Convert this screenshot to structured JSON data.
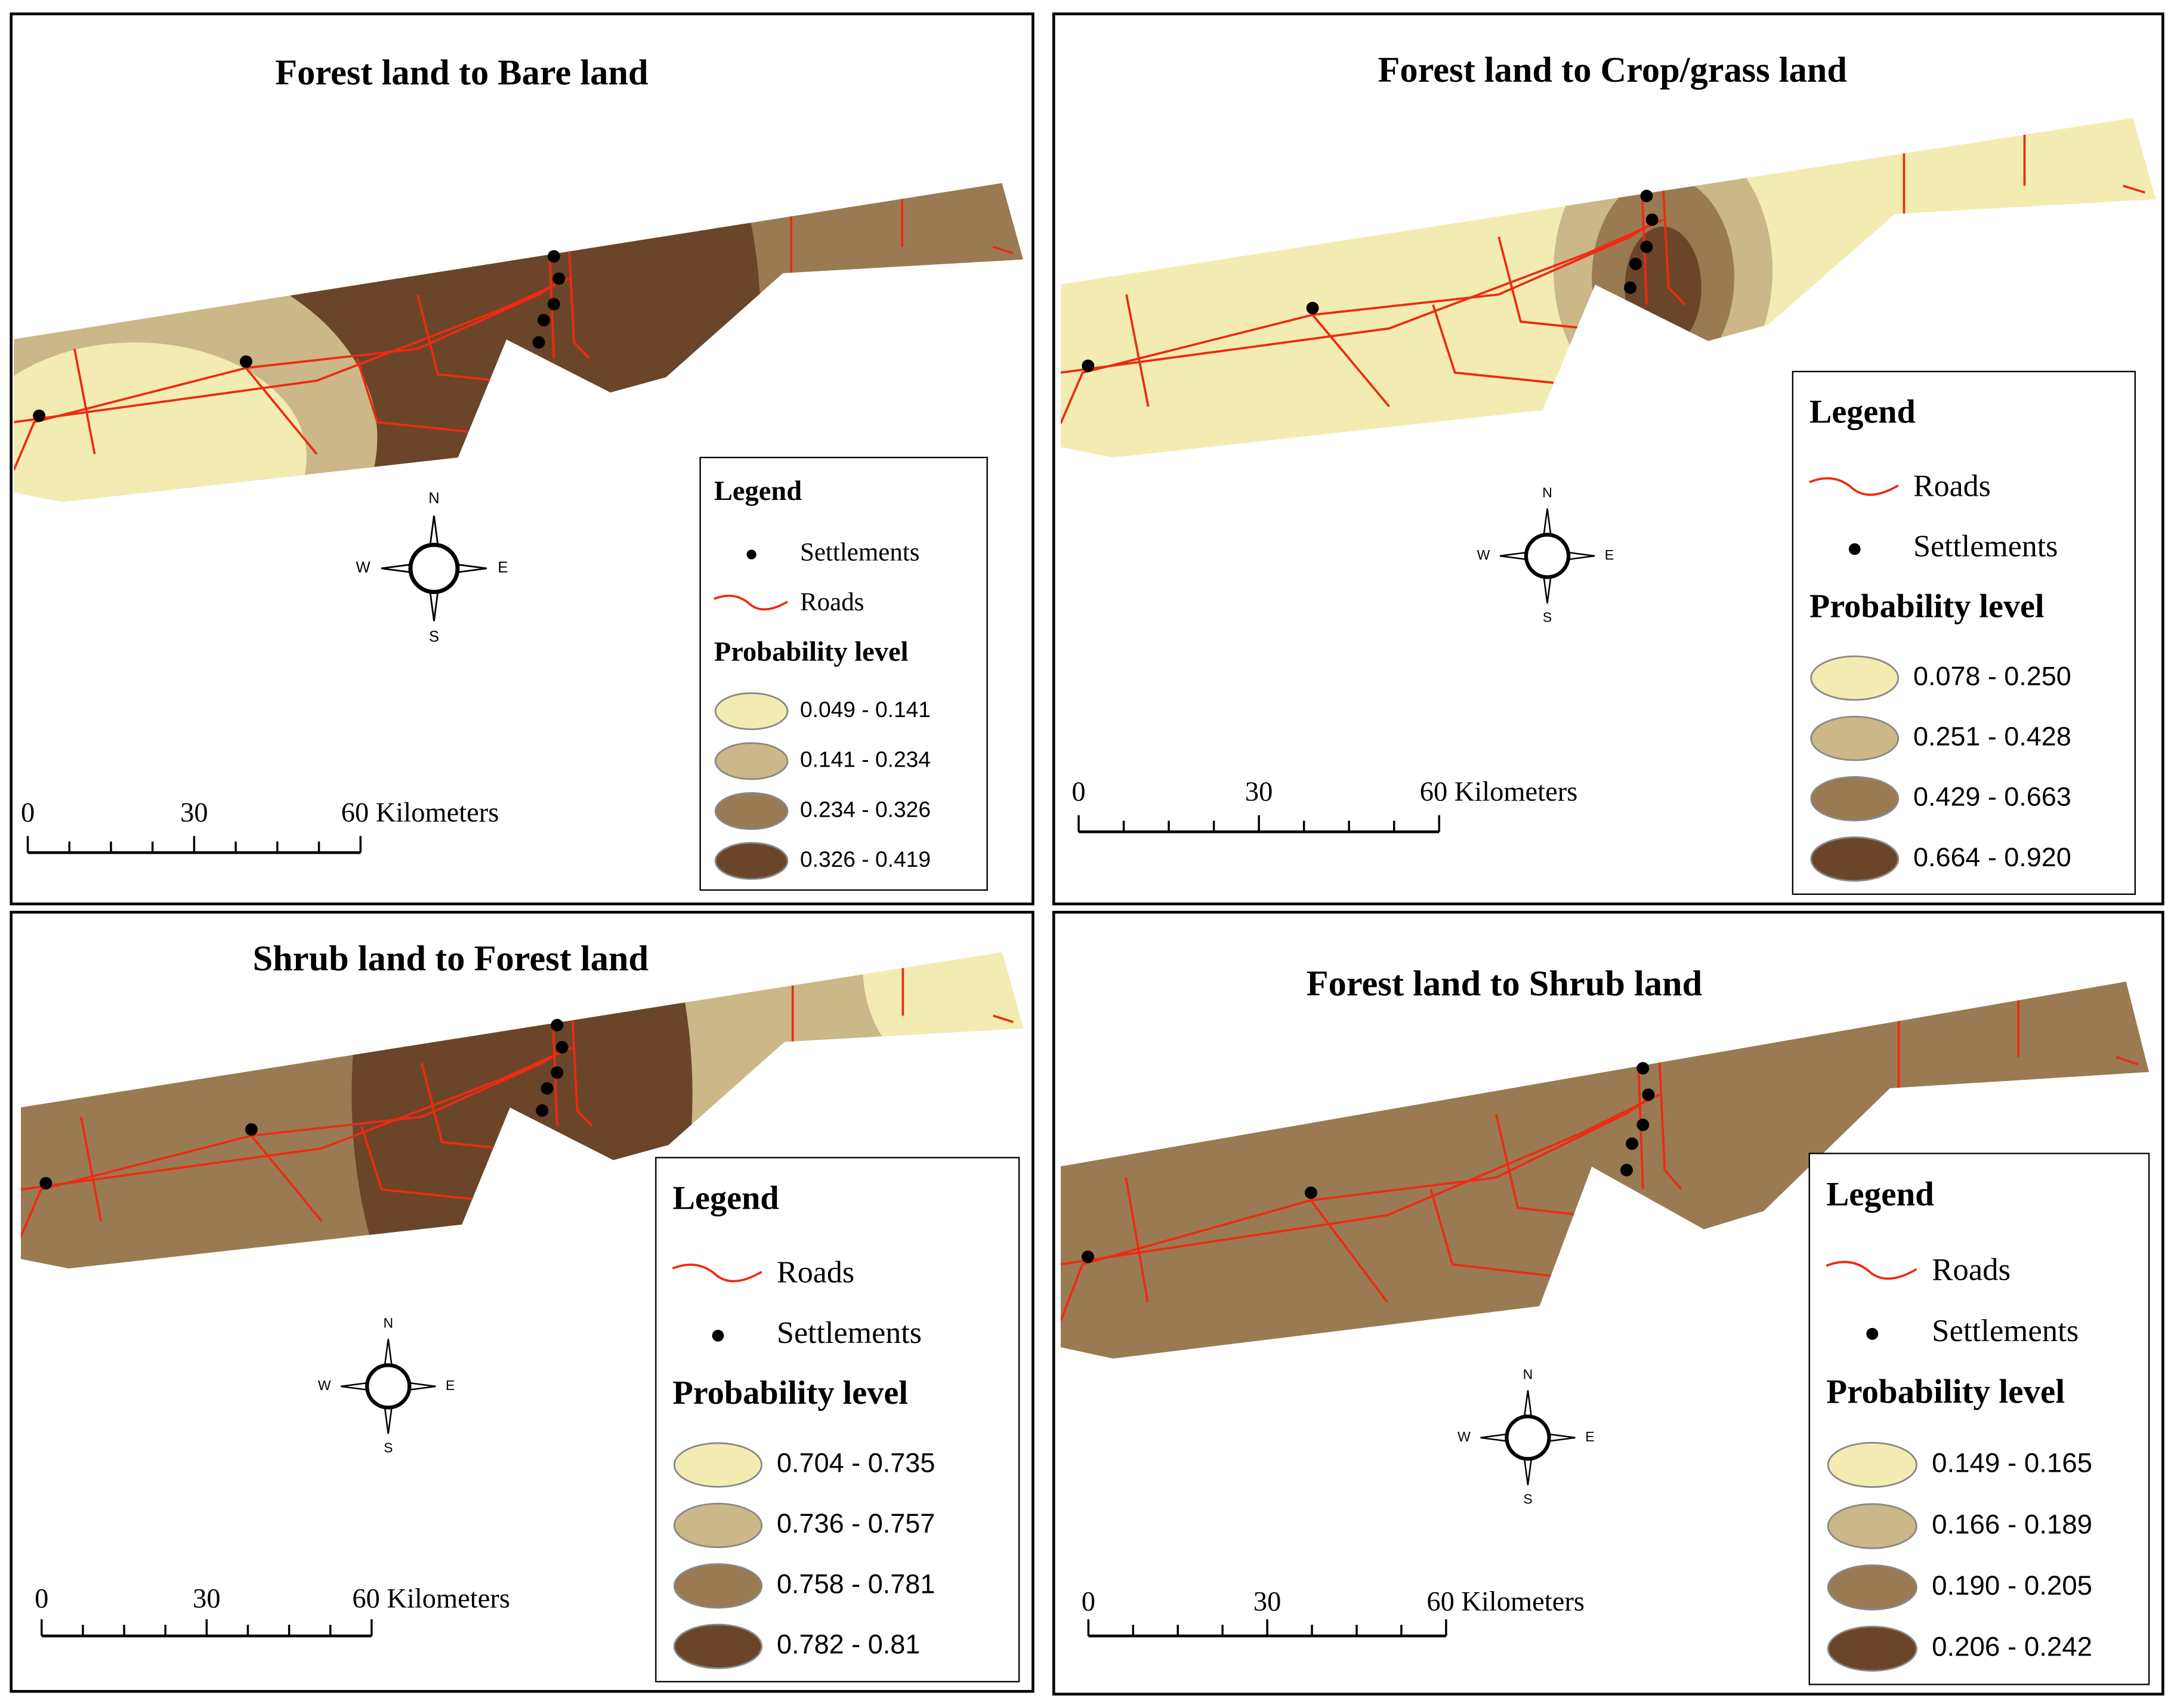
{
  "panels": [
    {
      "title": "Forest land to Bare land",
      "legend": {
        "title": "Legend",
        "items": [
          {
            "label": "Settlements",
            "symbol": "point"
          },
          {
            "label": "Roads",
            "symbol": "line"
          }
        ],
        "heading": "Probability level",
        "classes": [
          {
            "label": "0.049 - 0.141",
            "color": "#f3ecb2"
          },
          {
            "label": "0.141 - 0.234",
            "color": "#cbb787"
          },
          {
            "label": "0.234 - 0.326",
            "color": "#9a7a52"
          },
          {
            "label": "0.326 - 0.419",
            "color": "#6b4529"
          }
        ]
      },
      "scale_labels": [
        "0",
        "30",
        "60 Kilometers"
      ]
    },
    {
      "title": "Forest land to Crop/grass land",
      "legend": {
        "title": "Legend",
        "items": [
          {
            "label": "Roads",
            "symbol": "line"
          },
          {
            "label": "Settlements",
            "symbol": "point"
          }
        ],
        "heading": "Probability level",
        "classes": [
          {
            "label": "0.078 - 0.250",
            "color": "#f3ecb2"
          },
          {
            "label": "0.251 - 0.428",
            "color": "#cbb787"
          },
          {
            "label": "0.429 - 0.663",
            "color": "#9a7a52"
          },
          {
            "label": "0.664 - 0.920",
            "color": "#6b4529"
          }
        ]
      },
      "scale_labels": [
        "0",
        "30",
        "60 Kilometers"
      ]
    },
    {
      "title": "Shrub land to Forest land",
      "legend": {
        "title": "Legend",
        "items": [
          {
            "label": "Roads",
            "symbol": "line"
          },
          {
            "label": "Settlements",
            "symbol": "point"
          }
        ],
        "heading": "Probability level",
        "classes": [
          {
            "label": "0.704 - 0.735",
            "color": "#f3ecb2"
          },
          {
            "label": "0.736 - 0.757",
            "color": "#cbb787"
          },
          {
            "label": "0.758 - 0.781",
            "color": "#9a7a52"
          },
          {
            "label": "0.782 - 0.81",
            "color": "#6b4529"
          }
        ]
      },
      "scale_labels": [
        "0",
        "30",
        "60 Kilometers"
      ]
    },
    {
      "title": "Forest land to Shrub land",
      "legend": {
        "title": "Legend",
        "items": [
          {
            "label": "Roads",
            "symbol": "line"
          },
          {
            "label": "Settlements",
            "symbol": "point"
          }
        ],
        "heading": "Probability level",
        "classes": [
          {
            "label": "0.149 - 0.165",
            "color": "#f3ecb2"
          },
          {
            "label": "0.166 - 0.189",
            "color": "#cbb787"
          },
          {
            "label": "0.190 - 0.205",
            "color": "#9a7a52"
          },
          {
            "label": "0.206 - 0.242",
            "color": "#6b4529"
          }
        ]
      },
      "scale_labels": [
        "0",
        "30",
        "60 Kilometers"
      ]
    }
  ],
  "compass": {
    "n": "N",
    "s": "S",
    "e": "E",
    "w": "W"
  }
}
